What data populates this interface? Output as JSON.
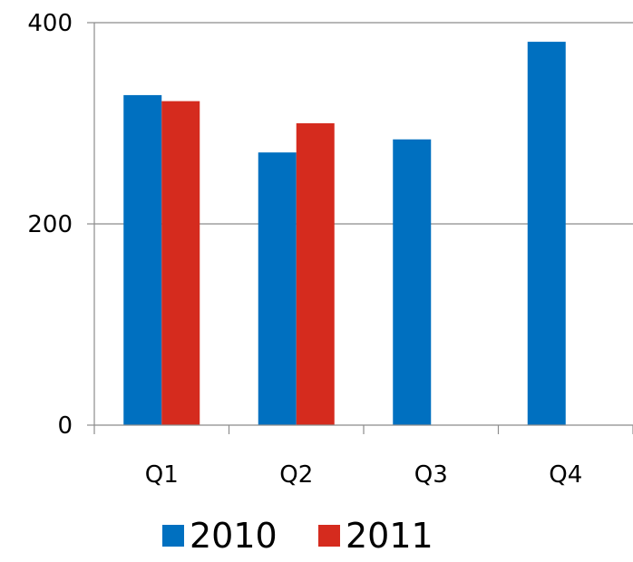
{
  "chart_data": {
    "type": "bar",
    "title": "",
    "xlabel": "",
    "ylabel": "",
    "categories": [
      "Q1",
      "Q2",
      "Q3",
      "Q4"
    ],
    "series": [
      {
        "name": "2010",
        "color": "#0070c0",
        "values": [
          328,
          271,
          284,
          381
        ]
      },
      {
        "name": "2011",
        "color": "#d52b1e",
        "values": [
          322,
          300,
          null,
          null
        ]
      }
    ],
    "ylim": [
      0,
      400
    ],
    "yticks": [
      0,
      200,
      400
    ],
    "grid": true,
    "legend": "bottom"
  }
}
